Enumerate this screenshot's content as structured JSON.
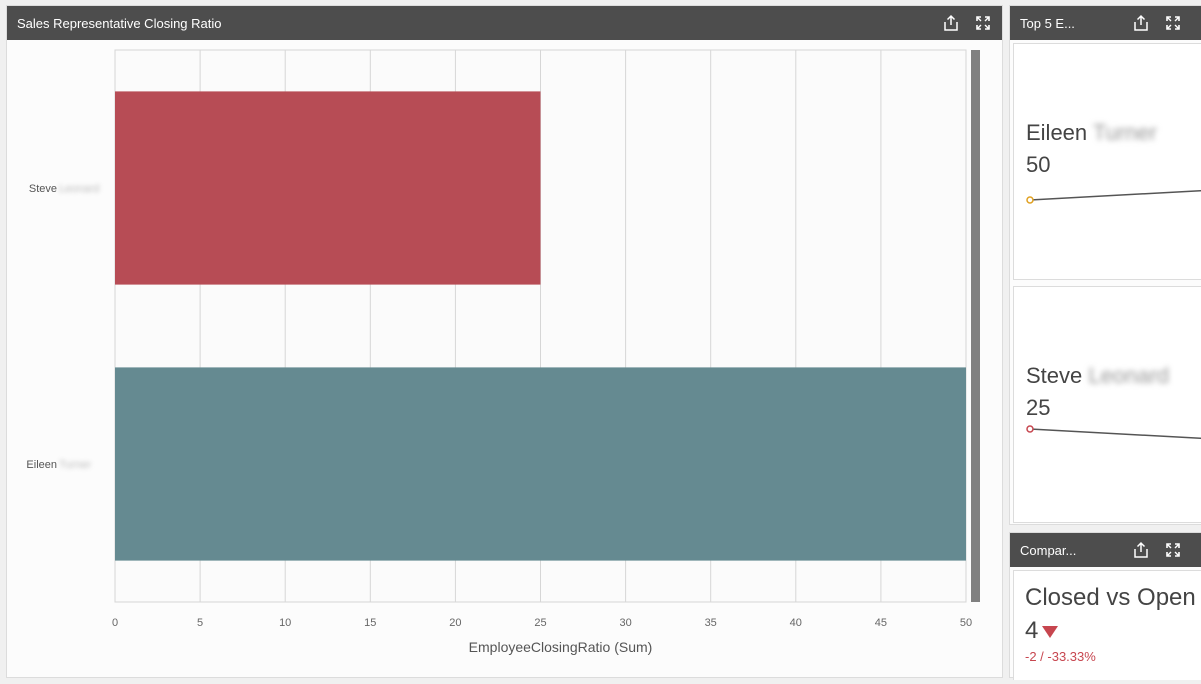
{
  "main_panel": {
    "title": "Sales Representative Closing Ratio"
  },
  "top5_panel": {
    "title": "Top 5 E...",
    "cards": [
      {
        "first": "Eileen",
        "last": "Turner",
        "value": "50"
      },
      {
        "first": "Steve",
        "last": "Leonard",
        "value": "25"
      }
    ]
  },
  "compare_panel": {
    "title": "Compar...",
    "kpi_title": "Closed vs Open",
    "value": "4",
    "delta": "-2 / -33.33%",
    "trend": "down"
  },
  "icons": {
    "share": "share-icon",
    "expand": "expand-icon"
  },
  "colors": {
    "steve_bar": "#b74c55",
    "eileen_bar": "#658a91",
    "header_bg": "#4d4d4d",
    "negative": "#c7464f"
  },
  "chart_data": {
    "type": "bar",
    "orientation": "horizontal",
    "categories": [
      "Steve",
      "Eileen"
    ],
    "category_last_names": [
      "Leonard",
      "Turner"
    ],
    "values": [
      25,
      50
    ],
    "xlabel": "EmployeeClosingRatio (Sum)",
    "ylabel": "",
    "xlim": [
      0,
      50
    ],
    "xticks": [
      "0",
      "5",
      "10",
      "15",
      "20",
      "25",
      "30",
      "35",
      "40",
      "45",
      "50"
    ],
    "grid": true
  }
}
